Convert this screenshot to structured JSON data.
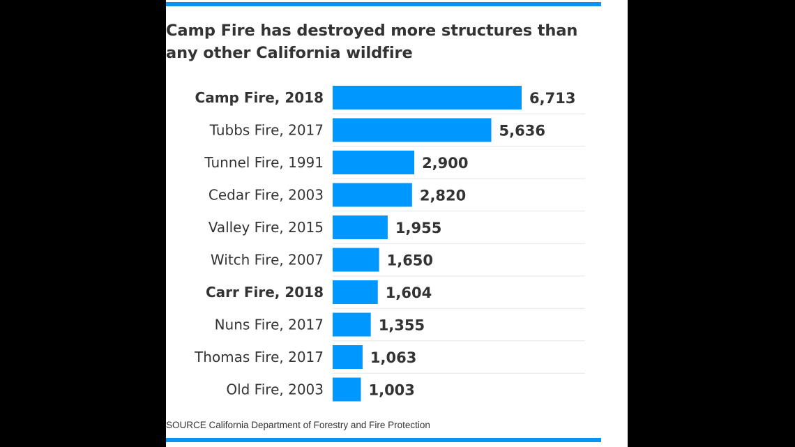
{
  "title": "Camp Fire has destroyed more structures than any other California wildfire",
  "source": "SOURCE California Department of Forestry and Fire Protection",
  "colors": {
    "bar": "#0098ff",
    "rule": "#0b93f2",
    "separator": "#e6e6e6",
    "text": "#333333"
  },
  "chart_data": {
    "type": "bar",
    "orientation": "horizontal",
    "title": "Camp Fire has destroyed more structures than any other California wildfire",
    "categories": [
      "Camp Fire, 2018",
      "Tubbs Fire, 2017",
      "Tunnel Fire, 1991",
      "Cedar Fire, 2003",
      "Valley Fire, 2015",
      "Witch Fire, 2007",
      "Carr Fire, 2018",
      "Nuns Fire, 2017",
      "Thomas Fire, 2017",
      "Old Fire, 2003"
    ],
    "values": [
      6713,
      5636,
      2900,
      2820,
      1955,
      1650,
      1604,
      1355,
      1063,
      1003
    ],
    "value_labels": [
      "6,713",
      "5,636",
      "2,900",
      "2,820",
      "1,955",
      "1,650",
      "1,604",
      "1,355",
      "1,063",
      "1,003"
    ],
    "highlighted_categories": [
      "Camp Fire, 2018",
      "Carr Fire, 2018"
    ],
    "xlabel": "",
    "ylabel": "",
    "xlim": [
      0,
      6713
    ],
    "grid": false,
    "legend": "none"
  }
}
